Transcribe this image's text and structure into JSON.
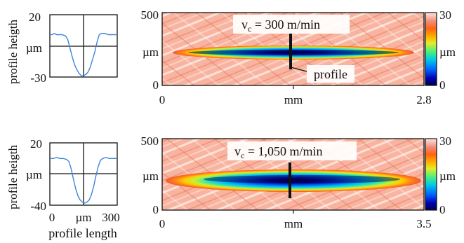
{
  "chart_data": [
    {
      "type": "line",
      "panel": "profile-top",
      "ylabel": "profile heigth",
      "y_unit": "µm",
      "ytick_labels": [
        "20",
        "µm",
        "-30"
      ],
      "ylim": [
        -30,
        20
      ],
      "xlim": [
        0,
        300
      ],
      "x": [
        0,
        10,
        20,
        30,
        40,
        55,
        70,
        80,
        90,
        100,
        110,
        120,
        130,
        140,
        150,
        160,
        170,
        180,
        190,
        200,
        210,
        220,
        230,
        245,
        260,
        280,
        300
      ],
      "values": [
        4,
        4,
        5,
        4,
        4,
        4,
        3,
        0,
        -7,
        -14,
        -20,
        -24,
        -27,
        -29,
        -29,
        -28,
        -26,
        -22,
        -16,
        -10,
        -2,
        4,
        5,
        5,
        4,
        4,
        4
      ],
      "color": "#3f86d4"
    },
    {
      "type": "heatmap",
      "panel": "map-top",
      "annotation": "v_c = 300 m/min",
      "annotation_prefix": "v",
      "annotation_sub": "c",
      "annotation_rest": " = 300 m/min",
      "profile_label": "profile",
      "xtick_labels": [
        "0",
        "mm",
        "2.8"
      ],
      "xlim": [
        0,
        2.8
      ],
      "ytick_labels": [
        "500",
        "µm",
        "0"
      ],
      "ylim": [
        0,
        500
      ],
      "colorbar": {
        "max_label": "30",
        "unit": "µm",
        "min_label": "0",
        "range": [
          0,
          30
        ]
      },
      "colormap": [
        "#00004a",
        "#0000a0",
        "#0046e6",
        "#0096ff",
        "#00dcc8",
        "#64f064",
        "#e6eb28",
        "#ffaa00",
        "#ff6414",
        "#f57555",
        "#fbc3b4",
        "#ffffff"
      ]
    },
    {
      "type": "line",
      "panel": "profile-bottom",
      "ylabel": "profile heigth",
      "xlabel": "profile length",
      "ytick_labels": [
        "20",
        "µm",
        "-40"
      ],
      "xtick_labels": [
        "0",
        "µm",
        "300"
      ],
      "ylim": [
        -40,
        20
      ],
      "xlim": [
        0,
        300
      ],
      "x": [
        0,
        15,
        30,
        45,
        60,
        75,
        85,
        95,
        105,
        115,
        125,
        135,
        145,
        155,
        165,
        175,
        185,
        195,
        205,
        215,
        225,
        235,
        250,
        265,
        280,
        300
      ],
      "values": [
        5,
        5,
        6,
        5,
        5,
        4,
        2,
        -5,
        -15,
        -24,
        -31,
        -35,
        -37,
        -38,
        -37,
        -35,
        -30,
        -22,
        -12,
        -3,
        3,
        5,
        6,
        5,
        5,
        5
      ],
      "color": "#3f86d4"
    },
    {
      "type": "heatmap",
      "panel": "map-bottom",
      "annotation": "v_c = 1,050 m/min",
      "annotation_prefix": "v",
      "annotation_sub": "c",
      "annotation_rest": " = 1,050 m/min",
      "xtick_labels": [
        "0",
        "mm",
        "3.5"
      ],
      "xlim": [
        0,
        3.5
      ],
      "ytick_labels": [
        "500",
        "µm",
        "0"
      ],
      "ylim": [
        0,
        500
      ],
      "colorbar": {
        "max_label": "30",
        "unit": "µm",
        "min_label": "0",
        "range": [
          0,
          30
        ]
      },
      "colormap": [
        "#00004a",
        "#0000a0",
        "#0046e6",
        "#0096ff",
        "#00dcc8",
        "#64f064",
        "#e6eb28",
        "#ffaa00",
        "#ff6414",
        "#f57555",
        "#fbc3b4",
        "#ffffff"
      ]
    }
  ]
}
